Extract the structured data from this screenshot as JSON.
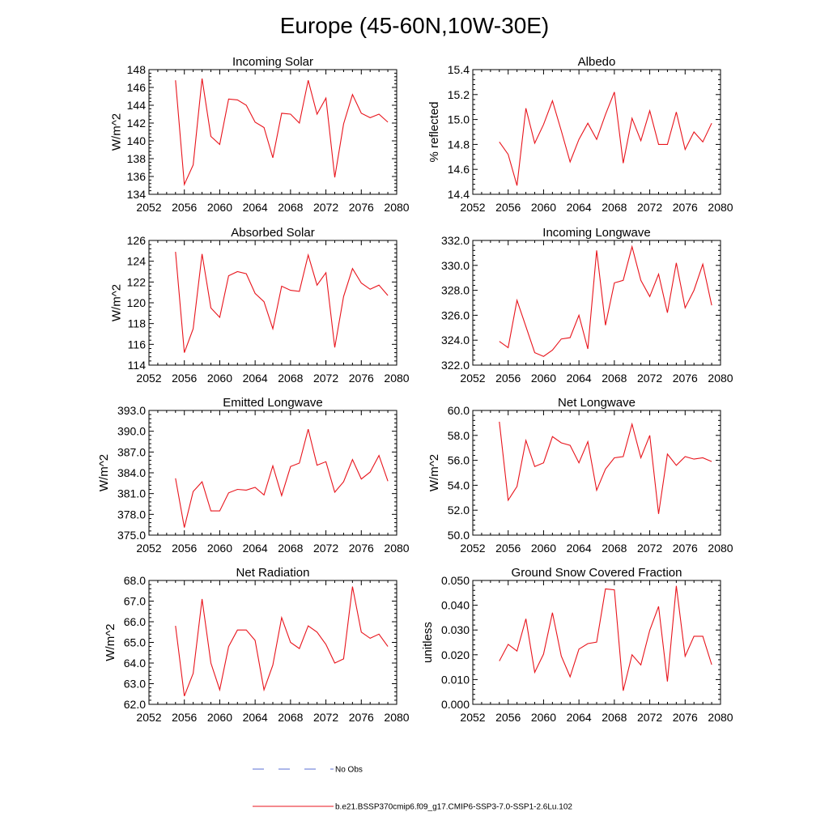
{
  "title": "Europe (45-60N,10W-30E)",
  "colors": {
    "series": "#e8141c",
    "obs": "#5a6fd6",
    "axis": "#000000"
  },
  "legend": {
    "obs_label": "No Obs",
    "model_label": "b.e21.BSSP370cmip6.f09_g17.CMIP6-SSP3-7.0-SSP1-2.6Lu.102"
  },
  "chart_data": [
    {
      "type": "line",
      "title": "Incoming Solar",
      "ylabel": "W/m^2",
      "xlim": [
        2052,
        2080
      ],
      "ylim": [
        134,
        148
      ],
      "xticks": [
        "2052",
        "2056",
        "2060",
        "2064",
        "2068",
        "2072",
        "2076",
        "2080"
      ],
      "yticks": [
        "134",
        "136",
        "138",
        "140",
        "142",
        "144",
        "146",
        "148"
      ],
      "x": [
        2055,
        2056,
        2057,
        2058,
        2059,
        2060,
        2061,
        2062,
        2063,
        2064,
        2065,
        2066,
        2067,
        2068,
        2069,
        2070,
        2071,
        2072,
        2073,
        2074,
        2075,
        2076,
        2077,
        2078,
        2079
      ],
      "values": [
        146.8,
        135.1,
        137.3,
        147.0,
        140.5,
        139.6,
        144.7,
        144.6,
        144.0,
        142.1,
        141.5,
        138.1,
        143.1,
        143.0,
        142.0,
        146.8,
        143.0,
        144.8,
        135.9,
        141.9,
        145.2,
        143.1,
        142.6,
        143.0,
        142.1
      ]
    },
    {
      "type": "line",
      "title": "Albedo",
      "ylabel": "% reflected",
      "xlim": [
        2052,
        2080
      ],
      "ylim": [
        14.4,
        15.4
      ],
      "xticks": [
        "2052",
        "2056",
        "2060",
        "2064",
        "2068",
        "2072",
        "2076",
        "2080"
      ],
      "yticks": [
        "14.4",
        "14.6",
        "14.8",
        "15.0",
        "15.2",
        "15.4"
      ],
      "x": [
        2055,
        2056,
        2057,
        2058,
        2059,
        2060,
        2061,
        2062,
        2063,
        2064,
        2065,
        2066,
        2067,
        2068,
        2069,
        2070,
        2071,
        2072,
        2073,
        2074,
        2075,
        2076,
        2077,
        2078,
        2079
      ],
      "values": [
        14.82,
        14.72,
        14.47,
        15.09,
        14.81,
        14.96,
        15.15,
        14.91,
        14.66,
        14.84,
        14.97,
        14.84,
        15.04,
        15.22,
        14.65,
        15.01,
        14.83,
        15.07,
        14.8,
        14.8,
        15.06,
        14.76,
        14.9,
        14.82,
        14.97
      ]
    },
    {
      "type": "line",
      "title": "Absorbed Solar",
      "ylabel": "W/m^2",
      "xlim": [
        2052,
        2080
      ],
      "ylim": [
        114,
        126
      ],
      "xticks": [
        "2052",
        "2056",
        "2060",
        "2064",
        "2068",
        "2072",
        "2076",
        "2080"
      ],
      "yticks": [
        "114",
        "116",
        "118",
        "120",
        "122",
        "124",
        "126"
      ],
      "x": [
        2055,
        2056,
        2057,
        2058,
        2059,
        2060,
        2061,
        2062,
        2063,
        2064,
        2065,
        2066,
        2067,
        2068,
        2069,
        2070,
        2071,
        2072,
        2073,
        2074,
        2075,
        2076,
        2077,
        2078,
        2079
      ],
      "values": [
        124.9,
        115.2,
        117.5,
        124.7,
        119.5,
        118.6,
        122.6,
        123.0,
        122.8,
        120.9,
        120.1,
        117.5,
        121.6,
        121.2,
        121.1,
        124.6,
        121.7,
        122.9,
        115.7,
        120.6,
        123.3,
        121.9,
        121.3,
        121.7,
        120.7
      ]
    },
    {
      "type": "line",
      "title": "Incoming Longwave",
      "ylabel": "",
      "xlim": [
        2052,
        2080
      ],
      "ylim": [
        322.0,
        332.0
      ],
      "xticks": [
        "2052",
        "2056",
        "2060",
        "2064",
        "2068",
        "2072",
        "2076",
        "2080"
      ],
      "yticks": [
        "322.0",
        "324.0",
        "326.0",
        "328.0",
        "330.0",
        "332.0"
      ],
      "x": [
        2055,
        2056,
        2057,
        2058,
        2059,
        2060,
        2061,
        2062,
        2063,
        2064,
        2065,
        2066,
        2067,
        2068,
        2069,
        2070,
        2071,
        2072,
        2073,
        2074,
        2075,
        2076,
        2077,
        2078,
        2079
      ],
      "values": [
        323.9,
        323.4,
        327.2,
        325.1,
        323.0,
        322.7,
        323.2,
        324.1,
        324.2,
        326.0,
        323.3,
        331.2,
        325.2,
        328.6,
        328.8,
        331.5,
        328.8,
        327.5,
        329.3,
        326.2,
        330.2,
        326.6,
        328.0,
        330.1,
        326.8
      ]
    },
    {
      "type": "line",
      "title": "Emitted Longwave",
      "ylabel": "W/m^2",
      "xlim": [
        2052,
        2080
      ],
      "ylim": [
        375.0,
        393.0
      ],
      "xticks": [
        "2052",
        "2056",
        "2060",
        "2064",
        "2068",
        "2072",
        "2076",
        "2080"
      ],
      "yticks": [
        "375.0",
        "378.0",
        "381.0",
        "384.0",
        "387.0",
        "390.0",
        "393.0"
      ],
      "x": [
        2055,
        2056,
        2057,
        2058,
        2059,
        2060,
        2061,
        2062,
        2063,
        2064,
        2065,
        2066,
        2067,
        2068,
        2069,
        2070,
        2071,
        2072,
        2073,
        2074,
        2075,
        2076,
        2077,
        2078,
        2079
      ],
      "values": [
        383.2,
        376.1,
        381.3,
        382.7,
        378.5,
        378.5,
        381.1,
        381.6,
        381.5,
        381.9,
        380.8,
        385.0,
        380.7,
        384.9,
        385.4,
        390.3,
        385.1,
        385.6,
        381.2,
        382.7,
        385.9,
        383.1,
        384.1,
        386.5,
        382.8
      ]
    },
    {
      "type": "line",
      "title": "Net Longwave",
      "ylabel": "W/m^2",
      "xlim": [
        2052,
        2080
      ],
      "ylim": [
        50.0,
        60.0
      ],
      "xticks": [
        "2052",
        "2056",
        "2060",
        "2064",
        "2068",
        "2072",
        "2076",
        "2080"
      ],
      "yticks": [
        "50.0",
        "52.0",
        "54.0",
        "56.0",
        "58.0",
        "60.0"
      ],
      "x": [
        2055,
        2056,
        2057,
        2058,
        2059,
        2060,
        2061,
        2062,
        2063,
        2064,
        2065,
        2066,
        2067,
        2068,
        2069,
        2070,
        2071,
        2072,
        2073,
        2074,
        2075,
        2076,
        2077,
        2078,
        2079
      ],
      "values": [
        59.1,
        52.8,
        53.9,
        57.6,
        55.5,
        55.8,
        57.9,
        57.4,
        57.2,
        55.8,
        57.5,
        53.6,
        55.3,
        56.2,
        56.3,
        58.9,
        56.2,
        58.0,
        51.7,
        56.5,
        55.6,
        56.3,
        56.1,
        56.2,
        55.9
      ]
    },
    {
      "type": "line",
      "title": "Net Radiation",
      "ylabel": "W/m^2",
      "xlim": [
        2052,
        2080
      ],
      "ylim": [
        62.0,
        68.0
      ],
      "xticks": [
        "2052",
        "2056",
        "2060",
        "2064",
        "2068",
        "2072",
        "2076",
        "2080"
      ],
      "yticks": [
        "62.0",
        "63.0",
        "64.0",
        "65.0",
        "66.0",
        "67.0",
        "68.0"
      ],
      "x": [
        2055,
        2056,
        2057,
        2058,
        2059,
        2060,
        2061,
        2062,
        2063,
        2064,
        2065,
        2066,
        2067,
        2068,
        2069,
        2070,
        2071,
        2072,
        2073,
        2074,
        2075,
        2076,
        2077,
        2078,
        2079
      ],
      "values": [
        65.8,
        62.4,
        63.5,
        67.1,
        64.0,
        62.7,
        64.8,
        65.6,
        65.6,
        65.1,
        62.7,
        63.9,
        66.2,
        65.0,
        64.7,
        65.8,
        65.5,
        64.9,
        64.0,
        64.2,
        67.7,
        65.5,
        65.2,
        65.4,
        64.8
      ]
    },
    {
      "type": "line",
      "title": "Ground Snow Covered Fraction",
      "ylabel": "unitless",
      "xlim": [
        2052,
        2080
      ],
      "ylim": [
        0.0,
        0.05
      ],
      "xticks": [
        "2052",
        "2056",
        "2060",
        "2064",
        "2068",
        "2072",
        "2076",
        "2080"
      ],
      "yticks": [
        "0.000",
        "0.010",
        "0.020",
        "0.030",
        "0.040",
        "0.050"
      ],
      "x": [
        2055,
        2056,
        2057,
        2058,
        2059,
        2060,
        2061,
        2062,
        2063,
        2064,
        2065,
        2066,
        2067,
        2068,
        2069,
        2070,
        2071,
        2072,
        2073,
        2074,
        2075,
        2076,
        2077,
        2078,
        2079
      ],
      "values": [
        0.0175,
        0.0242,
        0.0215,
        0.0345,
        0.0129,
        0.0203,
        0.037,
        0.0195,
        0.0111,
        0.0223,
        0.0245,
        0.0251,
        0.0466,
        0.0462,
        0.0055,
        0.02,
        0.0159,
        0.0299,
        0.0395,
        0.0092,
        0.0478,
        0.0194,
        0.0275,
        0.0275,
        0.016
      ]
    }
  ]
}
